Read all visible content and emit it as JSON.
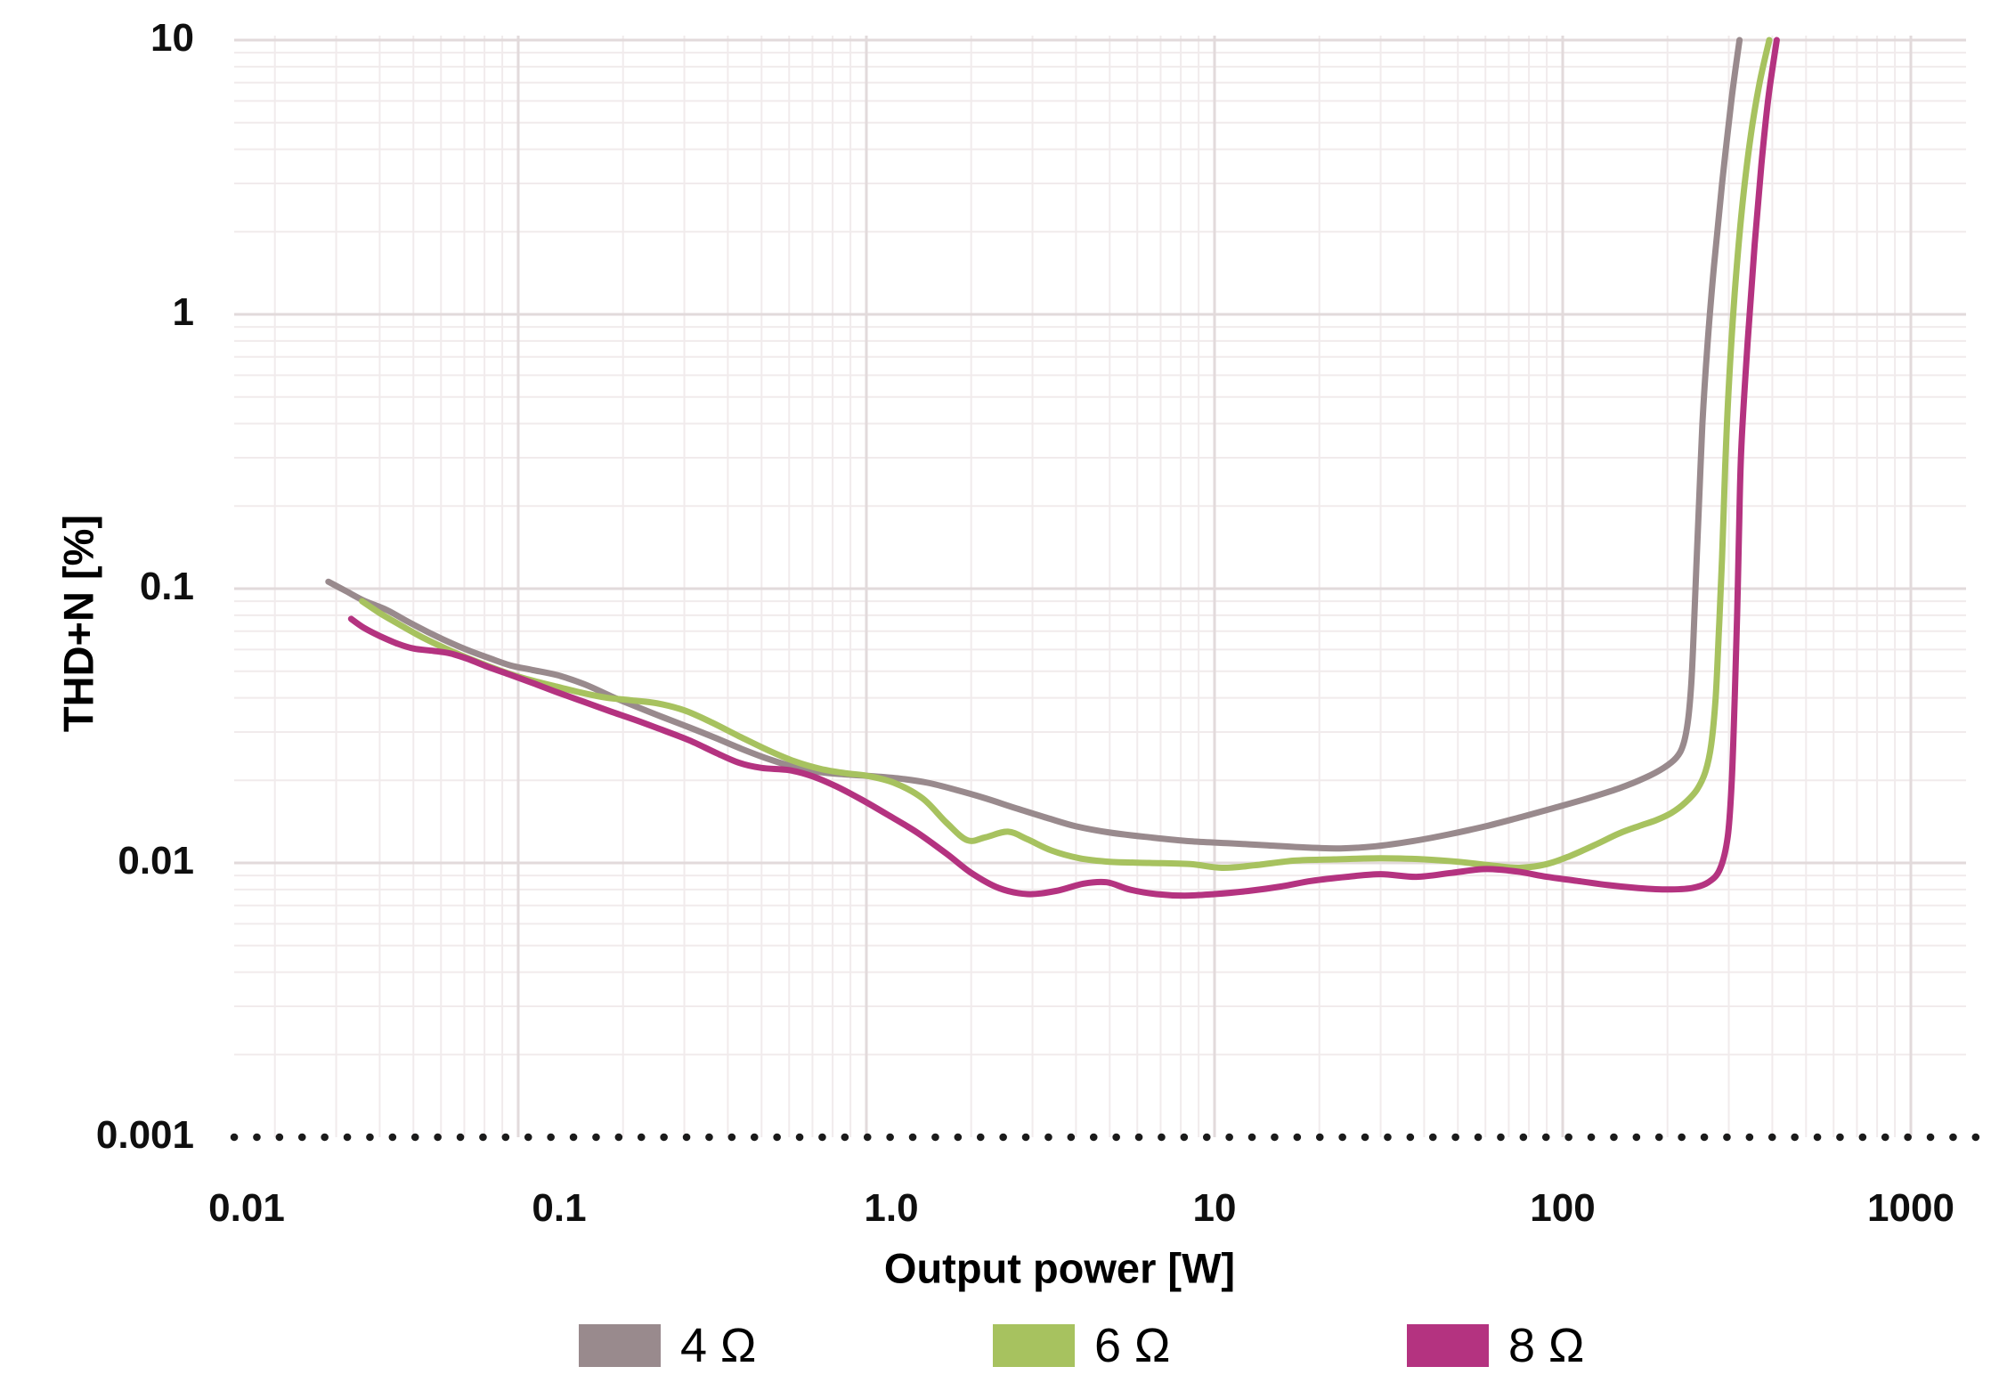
{
  "chart_data": {
    "type": "line",
    "title": "",
    "xlabel": "Output power [W]",
    "ylabel": "THD+N [%]",
    "x_scale": "log",
    "y_scale": "log",
    "xlim": [
      0.0153,
      1400
    ],
    "ylim": [
      0.001,
      10
    ],
    "grid": {
      "minor": true,
      "minor_color": "#f1ebec",
      "major_color": "#e2dadb"
    },
    "legend_position": "bottom",
    "baseline": {
      "value": 0.001,
      "style": "dotted",
      "color": "#1b1b1b"
    },
    "x_ticks": [
      {
        "value": 0.01,
        "label": "0.01"
      },
      {
        "value": 0.1,
        "label": "0.1"
      },
      {
        "value": 1,
        "label": "1.0"
      },
      {
        "value": 10,
        "label": "10"
      },
      {
        "value": 100,
        "label": "100"
      },
      {
        "value": 1000,
        "label": "1000"
      }
    ],
    "y_ticks": [
      {
        "value": 10,
        "label": "10"
      },
      {
        "value": 1,
        "label": "1"
      },
      {
        "value": 0.1,
        "label": "0.1"
      },
      {
        "value": 0.01,
        "label": "0.01"
      },
      {
        "value": 0.001,
        "label": "0.001"
      }
    ],
    "series": [
      {
        "name": "4 Ω",
        "color": "#998a8d",
        "points": [
          [
            0.0285,
            0.106
          ],
          [
            0.032,
            0.098
          ],
          [
            0.036,
            0.0905
          ],
          [
            0.042,
            0.0835
          ],
          [
            0.048,
            0.076
          ],
          [
            0.055,
            0.0695
          ],
          [
            0.063,
            0.064
          ],
          [
            0.072,
            0.0595
          ],
          [
            0.082,
            0.056
          ],
          [
            0.095,
            0.0525
          ],
          [
            0.11,
            0.0505
          ],
          [
            0.13,
            0.0483
          ],
          [
            0.155,
            0.0448
          ],
          [
            0.185,
            0.0405
          ],
          [
            0.22,
            0.037
          ],
          [
            0.26,
            0.034
          ],
          [
            0.31,
            0.0312
          ],
          [
            0.37,
            0.0285
          ],
          [
            0.44,
            0.026
          ],
          [
            0.52,
            0.024
          ],
          [
            0.62,
            0.0224
          ],
          [
            0.74,
            0.0214
          ],
          [
            0.88,
            0.021
          ],
          [
            1.05,
            0.0207
          ],
          [
            1.25,
            0.0203
          ],
          [
            1.5,
            0.0196
          ],
          [
            1.8,
            0.0185
          ],
          [
            2.2,
            0.0172
          ],
          [
            2.7,
            0.0158
          ],
          [
            3.3,
            0.0146
          ],
          [
            4.0,
            0.0136
          ],
          [
            5.0,
            0.0129
          ],
          [
            6.5,
            0.0124
          ],
          [
            8.5,
            0.012
          ],
          [
            11,
            0.0118
          ],
          [
            14,
            0.0116
          ],
          [
            18,
            0.0114
          ],
          [
            23,
            0.0113
          ],
          [
            29,
            0.0115
          ],
          [
            37,
            0.012
          ],
          [
            47,
            0.0127
          ],
          [
            60,
            0.0136
          ],
          [
            76,
            0.0147
          ],
          [
            95,
            0.0159
          ],
          [
            118,
            0.0172
          ],
          [
            145,
            0.0187
          ],
          [
            172,
            0.0204
          ],
          [
            195,
            0.0222
          ],
          [
            212,
            0.0242
          ],
          [
            222,
            0.027
          ],
          [
            229,
            0.033
          ],
          [
            234,
            0.045
          ],
          [
            238,
            0.07
          ],
          [
            242,
            0.12
          ],
          [
            247,
            0.22
          ],
          [
            252,
            0.4
          ],
          [
            260,
            0.75
          ],
          [
            272,
            1.5
          ],
          [
            287,
            3.0
          ],
          [
            305,
            6.0
          ],
          [
            322,
            10.0
          ]
        ]
      },
      {
        "name": "6 Ω",
        "color": "#a7c25f",
        "points": [
          [
            0.0356,
            0.09
          ],
          [
            0.04,
            0.0815
          ],
          [
            0.046,
            0.0735
          ],
          [
            0.053,
            0.0665
          ],
          [
            0.061,
            0.061
          ],
          [
            0.07,
            0.0565
          ],
          [
            0.081,
            0.0525
          ],
          [
            0.094,
            0.049
          ],
          [
            0.11,
            0.0462
          ],
          [
            0.13,
            0.0438
          ],
          [
            0.155,
            0.0415
          ],
          [
            0.18,
            0.04
          ],
          [
            0.21,
            0.0392
          ],
          [
            0.25,
            0.0382
          ],
          [
            0.3,
            0.036
          ],
          [
            0.36,
            0.0325
          ],
          [
            0.43,
            0.029
          ],
          [
            0.52,
            0.0258
          ],
          [
            0.62,
            0.0235
          ],
          [
            0.74,
            0.022
          ],
          [
            0.88,
            0.0212
          ],
          [
            1.0,
            0.0208
          ],
          [
            1.2,
            0.0196
          ],
          [
            1.45,
            0.0172
          ],
          [
            1.7,
            0.014
          ],
          [
            1.95,
            0.0121
          ],
          [
            2.2,
            0.0124
          ],
          [
            2.55,
            0.013
          ],
          [
            2.9,
            0.0122
          ],
          [
            3.4,
            0.0111
          ],
          [
            4.1,
            0.0104
          ],
          [
            5.0,
            0.0101
          ],
          [
            6.5,
            0.01
          ],
          [
            8.5,
            0.0099
          ],
          [
            10.5,
            0.0096
          ],
          [
            13,
            0.0098
          ],
          [
            17,
            0.0102
          ],
          [
            22,
            0.0103
          ],
          [
            30,
            0.0104
          ],
          [
            40,
            0.0103
          ],
          [
            50,
            0.0101
          ],
          [
            62,
            0.0098
          ],
          [
            75,
            0.0096
          ],
          [
            90,
            0.0099
          ],
          [
            105,
            0.0106
          ],
          [
            125,
            0.0117
          ],
          [
            145,
            0.0128
          ],
          [
            165,
            0.0136
          ],
          [
            185,
            0.0143
          ],
          [
            205,
            0.0152
          ],
          [
            225,
            0.0166
          ],
          [
            243,
            0.0185
          ],
          [
            257,
            0.0215
          ],
          [
            267,
            0.027
          ],
          [
            275,
            0.04
          ],
          [
            281,
            0.07
          ],
          [
            287,
            0.13
          ],
          [
            293,
            0.28
          ],
          [
            300,
            0.55
          ],
          [
            312,
            1.2
          ],
          [
            327,
            2.4
          ],
          [
            347,
            4.5
          ],
          [
            368,
            7.0
          ],
          [
            392,
            10.0
          ]
        ]
      },
      {
        "name": "8 Ω",
        "color": "#b43380",
        "points": [
          [
            0.0331,
            0.0776
          ],
          [
            0.036,
            0.072
          ],
          [
            0.04,
            0.0672
          ],
          [
            0.045,
            0.063
          ],
          [
            0.05,
            0.0605
          ],
          [
            0.057,
            0.0593
          ],
          [
            0.064,
            0.058
          ],
          [
            0.072,
            0.0553
          ],
          [
            0.082,
            0.0518
          ],
          [
            0.094,
            0.0487
          ],
          [
            0.11,
            0.0453
          ],
          [
            0.13,
            0.0418
          ],
          [
            0.155,
            0.0386
          ],
          [
            0.185,
            0.0356
          ],
          [
            0.22,
            0.033
          ],
          [
            0.26,
            0.0305
          ],
          [
            0.31,
            0.028
          ],
          [
            0.37,
            0.0252
          ],
          [
            0.43,
            0.0232
          ],
          [
            0.5,
            0.0222
          ],
          [
            0.6,
            0.0218
          ],
          [
            0.7,
            0.0207
          ],
          [
            0.82,
            0.019
          ],
          [
            0.97,
            0.017
          ],
          [
            1.15,
            0.015
          ],
          [
            1.4,
            0.0129
          ],
          [
            1.7,
            0.0108
          ],
          [
            2.0,
            0.0092
          ],
          [
            2.4,
            0.0081
          ],
          [
            2.9,
            0.0077
          ],
          [
            3.5,
            0.0079
          ],
          [
            4.2,
            0.0084
          ],
          [
            4.9,
            0.0085
          ],
          [
            5.7,
            0.008
          ],
          [
            6.8,
            0.0077
          ],
          [
            8.2,
            0.0076
          ],
          [
            10,
            0.0077
          ],
          [
            12.5,
            0.0079
          ],
          [
            15.5,
            0.0082
          ],
          [
            19,
            0.0086
          ],
          [
            24,
            0.0089
          ],
          [
            30,
            0.0091
          ],
          [
            38,
            0.0089
          ],
          [
            48,
            0.0092
          ],
          [
            60,
            0.0095
          ],
          [
            74,
            0.0093
          ],
          [
            90,
            0.0089
          ],
          [
            110,
            0.0086
          ],
          [
            135,
            0.0083
          ],
          [
            165,
            0.0081
          ],
          [
            200,
            0.008
          ],
          [
            235,
            0.0081
          ],
          [
            262,
            0.0085
          ],
          [
            283,
            0.0095
          ],
          [
            298,
            0.0125
          ],
          [
            306,
            0.02
          ],
          [
            312,
            0.04
          ],
          [
            317,
            0.08
          ],
          [
            321,
            0.16
          ],
          [
            326,
            0.33
          ],
          [
            340,
            0.8
          ],
          [
            356,
            1.8
          ],
          [
            372,
            3.5
          ],
          [
            390,
            6.2
          ],
          [
            412,
            10.0
          ]
        ]
      }
    ]
  }
}
